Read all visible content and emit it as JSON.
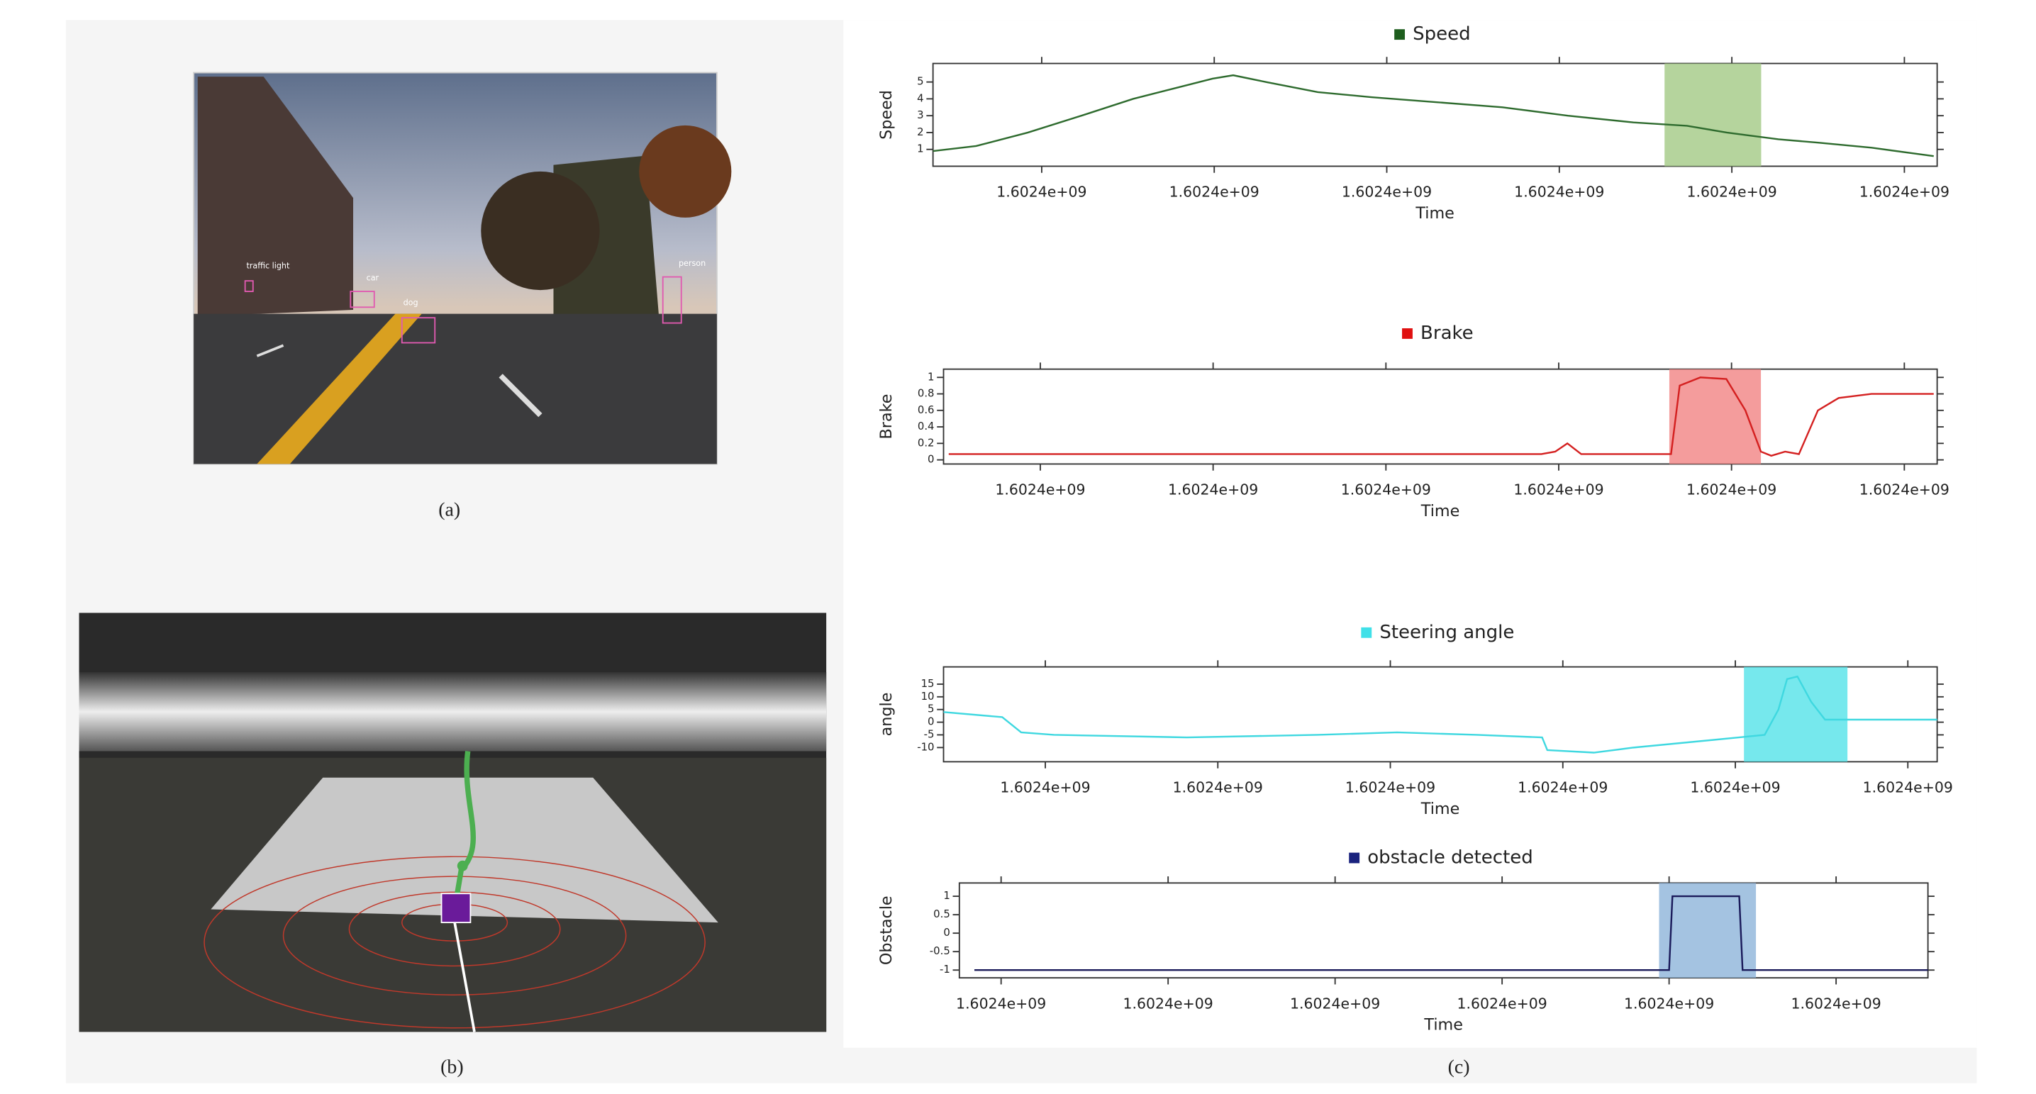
{
  "captions": [
    "(a)",
    "(b)",
    "(c)"
  ],
  "detections": [
    "traffic light",
    "car",
    "dog",
    "person"
  ],
  "chart_data": [
    {
      "type": "line",
      "xlabel": "Time",
      "ylabel": "Speed",
      "x": [
        1602400037,
        1602400062,
        1602400092,
        1602400123,
        1602400153,
        1602400176,
        1602400199,
        1602400211,
        1602400230,
        1602400260,
        1602400291,
        1602400329,
        1602400367,
        1602400405,
        1602400443,
        1602400474,
        1602400497,
        1602400527,
        1602400550,
        1602400581,
        1602400617
      ],
      "series": [
        {
          "name": "Speed",
          "color": "#2e6b2e",
          "legend_color": "#1e5e1e",
          "values": [
            0.9,
            1.2,
            2.0,
            3.0,
            4.0,
            4.6,
            5.2,
            5.4,
            5.0,
            4.4,
            4.1,
            3.8,
            3.5,
            3.0,
            2.6,
            2.4,
            2.0,
            1.6,
            1.4,
            1.1,
            0.6
          ]
        }
      ],
      "highlight_span": [
        1602400461,
        1602400517
      ],
      "highlight_color": "#a8cc8c",
      "xlim": [
        1602400037,
        1602400619
      ],
      "xticks": [
        {
          "value": 1602400100,
          "label": "1.6024e+09"
        },
        {
          "value": 1602400200,
          "label": "1.6024e+09"
        },
        {
          "value": 1602400300,
          "label": "1.6024e+09"
        },
        {
          "value": 1602400400,
          "label": "1.6024e+09"
        },
        {
          "value": 1602400500,
          "label": "1.6024e+09"
        },
        {
          "value": 1602400600,
          "label": "1.6024e+09"
        }
      ],
      "ylim": [
        0,
        6.1
      ],
      "yticks": [
        1,
        2,
        3,
        4,
        5
      ]
    },
    {
      "type": "line",
      "xlabel": "Time",
      "ylabel": "Brake",
      "x": [
        1602400047,
        1602400390,
        1602400398,
        1602400405,
        1602400413,
        1602400465,
        1602400470,
        1602400482,
        1602400497,
        1602400508,
        1602400517,
        1602400523,
        1602400531,
        1602400539,
        1602400550,
        1602400562,
        1602400581,
        1602400617
      ],
      "series": [
        {
          "name": "Brake",
          "color": "#d42020",
          "legend_color": "#e01010",
          "values": [
            0.07,
            0.07,
            0.1,
            0.2,
            0.07,
            0.07,
            0.9,
            1.0,
            0.98,
            0.6,
            0.1,
            0.05,
            0.1,
            0.07,
            0.6,
            0.75,
            0.8,
            0.8
          ]
        }
      ],
      "highlight_span": [
        1602400464,
        1602400517
      ],
      "highlight_color": "#f28b8b",
      "xlim": [
        1602400044,
        1602400619
      ],
      "xticks": [
        {
          "value": 1602400100,
          "label": "1.6024e+09"
        },
        {
          "value": 1602400200,
          "label": "1.6024e+09"
        },
        {
          "value": 1602400300,
          "label": "1.6024e+09"
        },
        {
          "value": 1602400400,
          "label": "1.6024e+09"
        },
        {
          "value": 1602400500,
          "label": "1.6024e+09"
        },
        {
          "value": 1602400600,
          "label": "1.6024e+09"
        }
      ],
      "ylim": [
        -0.05,
        1.1
      ],
      "yticks": [
        0,
        0.2,
        0.4,
        0.6,
        0.8,
        1
      ]
    },
    {
      "type": "line",
      "xlabel": "Time",
      "ylabel": "angle",
      "x": [
        1602400041,
        1602400075,
        1602400086,
        1602400105,
        1602400182,
        1602400258,
        1602400304,
        1602400350,
        1602400388,
        1602400391,
        1602400418,
        1602400441,
        1602400487,
        1602400502,
        1602400517,
        1602400525,
        1602400530,
        1602400536,
        1602400544,
        1602400552,
        1602400617
      ],
      "series": [
        {
          "name": "Steering angle",
          "color": "#3fd8e0",
          "legend_color": "#40e0e8",
          "values": [
            4,
            2,
            -4,
            -5,
            -6,
            -5,
            -4,
            -5,
            -6,
            -11,
            -12,
            -10,
            -7,
            -6,
            -5,
            5,
            17,
            18,
            8,
            1,
            1
          ]
        }
      ],
      "highlight_span": [
        1602400505,
        1602400565
      ],
      "highlight_color": "#5ee4ea",
      "xlim": [
        1602400041,
        1602400617
      ],
      "xticks": [
        {
          "value": 1602400100,
          "label": "1.6024e+09"
        },
        {
          "value": 1602400200,
          "label": "1.6024e+09"
        },
        {
          "value": 1602400300,
          "label": "1.6024e+09"
        },
        {
          "value": 1602400400,
          "label": "1.6024e+09"
        },
        {
          "value": 1602400500,
          "label": "1.6024e+09"
        },
        {
          "value": 1602400600,
          "label": "1.6024e+09"
        }
      ],
      "ylim": [
        -15.6,
        21.8
      ],
      "yticks": [
        -10,
        -5,
        0,
        5,
        10,
        15
      ]
    },
    {
      "type": "line",
      "xlabel": "Time",
      "ylabel": "Obstacle",
      "x": [
        1602400084,
        1602400500,
        1602400502,
        1602400542,
        1602400544,
        1602400655
      ],
      "series": [
        {
          "name": "obstacle detected",
          "color": "#1a1a5a",
          "legend_color": "#1a237e",
          "values": [
            -1,
            -1,
            1,
            1,
            -1,
            -1
          ]
        }
      ],
      "highlight_span": [
        1602400494,
        1602400552
      ],
      "highlight_color": "#94b8dc",
      "xlim": [
        1602400075,
        1602400655
      ],
      "xticks": [
        {
          "value": 1602400100,
          "label": "1.6024e+09"
        },
        {
          "value": 1602400200,
          "label": "1.6024e+09"
        },
        {
          "value": 1602400300,
          "label": "1.6024e+09"
        },
        {
          "value": 1602400400,
          "label": "1.6024e+09"
        },
        {
          "value": 1602400500,
          "label": "1.6024e+09"
        },
        {
          "value": 1602400600,
          "label": "1.6024e+09"
        }
      ],
      "ylim": [
        -1.21,
        1.36
      ],
      "yticks": [
        -1,
        -0.5,
        0,
        0.5,
        1
      ]
    }
  ]
}
